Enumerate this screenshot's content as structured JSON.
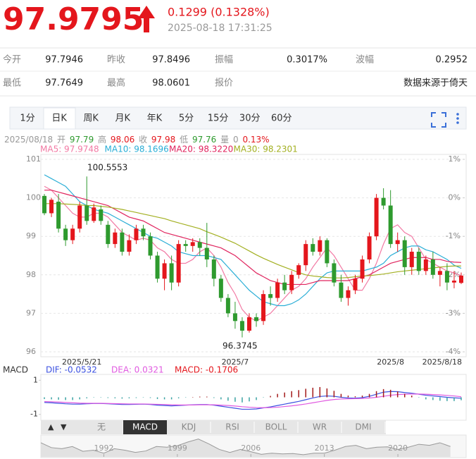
{
  "header": {
    "price": "97.9795",
    "change": "0.1299 (0.1328%)",
    "time": "2025-08-18 17:31:25"
  },
  "stats": {
    "rows": [
      [
        "今开",
        "97.7946",
        "昨收",
        "97.8496",
        "振幅",
        "0.3017%",
        "波幅",
        "0.2952"
      ],
      [
        "最低",
        "97.7649",
        "最高",
        "98.0601",
        "报价",
        "数据来源于倚天"
      ]
    ]
  },
  "tabs": [
    "1分",
    "日K",
    "周K",
    "月K",
    "年K",
    "5分",
    "15分",
    "30分",
    "60分"
  ],
  "info": [
    "2025/08/18",
    "开",
    "97.79",
    "高",
    "98.06",
    "收",
    "97.98",
    "低",
    "97.76",
    "量",
    "0",
    "0.13%"
  ],
  "indicator_tabs": [
    "无",
    "MACD",
    "KDJ",
    "RSI",
    "BOLL",
    "WR",
    "DMI"
  ],
  "chart_data": [
    {
      "type": "candlestick",
      "categories": [
        "2025/5/21",
        null,
        null,
        null,
        null,
        null,
        null,
        null,
        null,
        null,
        null,
        null,
        null,
        null,
        null,
        null,
        null,
        null,
        null,
        null,
        null,
        null,
        null,
        null,
        null,
        null,
        null,
        "2025/7",
        null,
        null,
        null,
        null,
        null,
        null,
        null,
        null,
        null,
        null,
        null,
        null,
        null,
        null,
        null,
        null,
        null,
        null,
        null,
        null,
        null,
        "2025/8",
        null,
        null,
        null,
        null,
        null,
        null,
        null,
        null,
        null,
        "2025/8/18"
      ],
      "open": [
        100.05,
        99.6,
        99.9,
        99.2,
        98.9,
        99.2,
        99.8,
        99.4,
        99.7,
        99.3,
        98.8,
        99.1,
        98.6,
        98.9,
        99.2,
        99.0,
        98.5,
        97.9,
        98.3,
        97.8,
        98.8,
        98.75,
        98.85,
        98.7,
        98.4,
        97.9,
        97.4,
        97.0,
        96.8,
        96.55,
        96.9,
        96.8,
        97.5,
        97.4,
        97.8,
        97.6,
        98.0,
        98.25,
        98.8,
        98.6,
        98.9,
        98.3,
        97.8,
        97.4,
        97.6,
        97.9,
        98.4,
        99.0,
        100.0,
        99.8,
        98.8,
        98.9,
        98.2,
        98.6,
        98.1,
        98.4,
        98.0,
        98.1,
        97.8,
        97.79
      ],
      "high": [
        100.1,
        100.0,
        100.1,
        99.3,
        99.3,
        99.9,
        100.5553,
        99.85,
        99.8,
        99.4,
        99.2,
        99.2,
        99.05,
        99.3,
        99.3,
        99.1,
        98.6,
        98.4,
        98.5,
        98.9,
        98.9,
        98.95,
        98.95,
        99.35,
        98.5,
        98.0,
        97.5,
        97.3,
        96.9,
        97.0,
        97.0,
        97.6,
        97.7,
        97.9,
        98.0,
        98.1,
        98.3,
        98.9,
        98.95,
        99.0,
        98.95,
        98.4,
        98.0,
        97.7,
        98.0,
        98.5,
        99.1,
        100.1,
        100.25,
        100.2,
        99.1,
        99.0,
        98.7,
        98.7,
        98.5,
        98.6,
        98.2,
        98.3,
        98.1,
        98.06
      ],
      "low": [
        99.55,
        99.5,
        99.1,
        98.75,
        98.8,
        99.1,
        99.3,
        99.35,
        99.3,
        98.7,
        98.7,
        98.5,
        98.5,
        98.8,
        98.9,
        98.4,
        97.8,
        97.6,
        97.6,
        97.7,
        98.6,
        98.6,
        98.5,
        98.2,
        97.7,
        97.3,
        96.9,
        96.6,
        96.3745,
        96.5,
        96.65,
        96.7,
        97.2,
        97.3,
        97.5,
        97.5,
        97.9,
        98.1,
        98.5,
        98.5,
        98.2,
        97.7,
        97.3,
        97.2,
        97.5,
        97.8,
        98.3,
        98.9,
        99.7,
        98.7,
        98.6,
        98.0,
        98.0,
        98.0,
        98.0,
        97.9,
        97.7,
        97.6,
        97.65,
        97.76
      ],
      "close": [
        99.6,
        99.95,
        99.2,
        98.9,
        99.2,
        99.8,
        99.4,
        99.75,
        99.4,
        98.8,
        99.1,
        98.6,
        98.9,
        99.2,
        99.0,
        98.5,
        97.9,
        98.3,
        97.8,
        98.8,
        98.75,
        98.85,
        98.7,
        98.4,
        97.9,
        97.4,
        97.0,
        96.8,
        96.55,
        96.9,
        96.8,
        97.5,
        97.4,
        97.8,
        97.6,
        98.0,
        98.25,
        98.8,
        98.6,
        98.9,
        98.3,
        97.8,
        97.4,
        97.6,
        97.9,
        98.4,
        99.0,
        100.0,
        99.8,
        98.8,
        98.9,
        98.2,
        98.6,
        98.1,
        98.4,
        98.0,
        98.1,
        97.8,
        97.85,
        97.98
      ],
      "up_color": "#e4161c",
      "down_color": "#2e9a2e",
      "series": [
        {
          "name": "MA5: 97.9748",
          "color": "#f27aa4",
          "values": [
            100.3,
            100.2,
            100.0,
            99.8,
            99.6,
            99.5,
            99.5,
            99.6,
            99.6,
            99.5,
            99.3,
            99.1,
            99.0,
            98.9,
            98.95,
            98.9,
            98.7,
            98.6,
            98.4,
            98.3,
            98.3,
            98.4,
            98.6,
            98.7,
            98.5,
            98.2,
            97.8,
            97.5,
            97.1,
            96.9,
            96.8,
            96.9,
            97.0,
            97.2,
            97.4,
            97.6,
            97.7,
            97.9,
            98.2,
            98.45,
            98.7,
            98.5,
            98.2,
            97.9,
            97.6,
            97.6,
            97.9,
            98.3,
            98.8,
            99.2,
            99.3,
            99.1,
            99.0,
            98.7,
            98.4,
            98.3,
            98.2,
            98.1,
            98.05,
            97.9748
          ]
        },
        {
          "name": "MA10: 98.1696",
          "color": "#2aaed6",
          "values": [
            100.6,
            100.5,
            100.4,
            100.3,
            100.1,
            99.9,
            99.8,
            99.7,
            99.65,
            99.6,
            99.5,
            99.4,
            99.3,
            99.2,
            99.1,
            99.0,
            98.95,
            98.85,
            98.75,
            98.6,
            98.55,
            98.5,
            98.5,
            98.5,
            98.45,
            98.4,
            98.2,
            98.0,
            97.8,
            97.6,
            97.45,
            97.3,
            97.25,
            97.2,
            97.2,
            97.25,
            97.35,
            97.5,
            97.7,
            97.9,
            98.05,
            98.1,
            98.1,
            98.1,
            98.1,
            98.1,
            98.15,
            98.2,
            98.3,
            98.5,
            98.6,
            98.7,
            98.75,
            98.75,
            98.65,
            98.6,
            98.5,
            98.4,
            98.25,
            98.1696
          ]
        },
        {
          "name": "MA20: 98.3220",
          "color": "#e0245e",
          "values": [
            100.2,
            100.2,
            100.15,
            100.1,
            100.05,
            100.0,
            99.95,
            99.9,
            99.85,
            99.8,
            99.7,
            99.6,
            99.5,
            99.45,
            99.4,
            99.3,
            99.2,
            99.1,
            99.05,
            99.0,
            98.95,
            98.9,
            98.85,
            98.8,
            98.75,
            98.7,
            98.6,
            98.5,
            98.35,
            98.2,
            98.05,
            97.95,
            97.85,
            97.8,
            97.75,
            97.75,
            97.75,
            97.75,
            97.8,
            97.85,
            97.85,
            97.85,
            97.85,
            97.85,
            97.9,
            97.95,
            98.0,
            98.1,
            98.2,
            98.3,
            98.35,
            98.4,
            98.45,
            98.45,
            98.45,
            98.4,
            98.4,
            98.35,
            98.33,
            98.322
          ]
        },
        {
          "name": "MA30: 98.2301",
          "color": "#a3b022",
          "values": [
            99.85,
            99.85,
            99.85,
            99.84,
            99.83,
            99.82,
            99.8,
            99.8,
            99.78,
            99.76,
            99.73,
            99.7,
            99.66,
            99.62,
            99.58,
            99.54,
            99.5,
            99.46,
            99.4,
            99.35,
            99.3,
            99.25,
            99.2,
            99.12,
            99.05,
            98.98,
            98.9,
            98.82,
            98.72,
            98.62,
            98.52,
            98.43,
            98.35,
            98.27,
            98.2,
            98.13,
            98.06,
            98.0,
            97.97,
            97.95,
            97.93,
            97.92,
            97.92,
            97.93,
            97.95,
            97.97,
            97.98,
            98.0,
            98.02,
            98.05,
            98.08,
            98.1,
            98.12,
            98.14,
            98.16,
            98.18,
            98.2,
            98.22,
            98.23,
            98.2301
          ]
        }
      ],
      "annotations": [
        "100.5553",
        "96.3745"
      ],
      "ylim": [
        96,
        101
      ],
      "yticks": [
        101,
        100,
        99,
        98,
        97,
        96
      ],
      "y2lim": [
        -4,
        1
      ],
      "y2ticks": [
        {
          "value": 1,
          "label": "1%"
        },
        {
          "value": 0,
          "label": "0%"
        },
        {
          "value": -1,
          "label": "-1%"
        },
        {
          "value": -2,
          "label": "-2%"
        },
        {
          "value": -3,
          "label": "-3%"
        },
        {
          "value": -4,
          "label": "-4%"
        }
      ],
      "grid": true
    },
    {
      "type": "macd",
      "title": "MACD",
      "series": [
        {
          "name": "DIF: -0.0532",
          "color": "#3b50e0",
          "values": [
            -0.3,
            -0.32,
            -0.35,
            -0.38,
            -0.4,
            -0.4,
            -0.38,
            -0.36,
            -0.36,
            -0.38,
            -0.4,
            -0.42,
            -0.42,
            -0.41,
            -0.4,
            -0.42,
            -0.46,
            -0.48,
            -0.5,
            -0.48,
            -0.46,
            -0.44,
            -0.42,
            -0.42,
            -0.46,
            -0.52,
            -0.58,
            -0.64,
            -0.7,
            -0.7,
            -0.68,
            -0.62,
            -0.56,
            -0.48,
            -0.4,
            -0.32,
            -0.24,
            -0.14,
            -0.04,
            0.05,
            0.08,
            0.06,
            0.0,
            -0.04,
            -0.05,
            -0.02,
            0.06,
            0.18,
            0.3,
            0.34,
            0.33,
            0.28,
            0.24,
            0.18,
            0.12,
            0.08,
            0.04,
            0.0,
            -0.03,
            -0.0532
          ]
        },
        {
          "name": "DEA: 0.0321",
          "color": "#e05ae0",
          "values": [
            -0.25,
            -0.26,
            -0.28,
            -0.3,
            -0.32,
            -0.34,
            -0.35,
            -0.35,
            -0.35,
            -0.36,
            -0.37,
            -0.38,
            -0.39,
            -0.39,
            -0.39,
            -0.4,
            -0.41,
            -0.42,
            -0.44,
            -0.45,
            -0.45,
            -0.45,
            -0.44,
            -0.44,
            -0.44,
            -0.46,
            -0.48,
            -0.51,
            -0.55,
            -0.58,
            -0.6,
            -0.61,
            -0.6,
            -0.58,
            -0.54,
            -0.5,
            -0.45,
            -0.39,
            -0.32,
            -0.25,
            -0.18,
            -0.13,
            -0.1,
            -0.09,
            -0.08,
            -0.07,
            -0.04,
            0.0,
            0.06,
            0.12,
            0.16,
            0.18,
            0.19,
            0.19,
            0.18,
            0.16,
            0.14,
            0.11,
            0.08,
            0.0321
          ]
        },
        {
          "name": "MACD: -0.1706",
          "type": "bar",
          "color": "#e4161c",
          "values": [
            -0.1,
            -0.12,
            -0.14,
            -0.16,
            -0.16,
            -0.12,
            -0.06,
            -0.02,
            -0.02,
            -0.04,
            -0.06,
            -0.08,
            -0.06,
            -0.04,
            -0.02,
            -0.04,
            -0.1,
            -0.12,
            -0.12,
            -0.06,
            -0.02,
            0.02,
            0.04,
            0.04,
            -0.04,
            -0.12,
            -0.2,
            -0.26,
            -0.3,
            -0.24,
            -0.16,
            -0.02,
            0.08,
            0.2,
            0.28,
            0.36,
            0.42,
            0.5,
            0.56,
            0.6,
            0.52,
            0.38,
            0.2,
            0.1,
            0.06,
            0.1,
            0.2,
            0.36,
            0.48,
            0.44,
            0.34,
            0.2,
            0.1,
            -0.02,
            -0.12,
            -0.16,
            -0.2,
            -0.22,
            -0.22,
            -0.1706
          ]
        }
      ],
      "up_color": "#a31a1a",
      "down_color": "#3aa3a3",
      "ylim": [
        -1.3,
        1.3
      ],
      "yticks": [
        1,
        -1
      ]
    },
    {
      "type": "area",
      "color": "#999999",
      "x": [
        1986,
        1987,
        1988,
        1989,
        1990,
        1991,
        1992,
        1993,
        1994,
        1995,
        1996,
        1997,
        1998,
        1999,
        2000,
        2001,
        2002,
        2003,
        2004,
        2005,
        2006,
        2007,
        2008,
        2009,
        2010,
        2011,
        2012,
        2013,
        2014,
        2015,
        2016,
        2017,
        2018,
        2019,
        2020,
        2021,
        2022,
        2023,
        2024,
        2025
      ],
      "values": [
        108,
        95,
        92,
        98,
        85,
        88,
        80,
        92,
        88,
        82,
        86,
        98,
        96,
        100,
        110,
        118,
        105,
        90,
        82,
        90,
        84,
        77,
        80,
        78,
        79,
        76,
        80,
        80,
        88,
        98,
        101,
        92,
        96,
        97,
        90,
        96,
        104,
        101,
        108,
        98
      ],
      "xlim": [
        1986,
        2026.5
      ],
      "ylim": [
        70,
        125
      ],
      "xticks": [
        1992,
        1999,
        2006,
        2013,
        2020
      ]
    }
  ]
}
